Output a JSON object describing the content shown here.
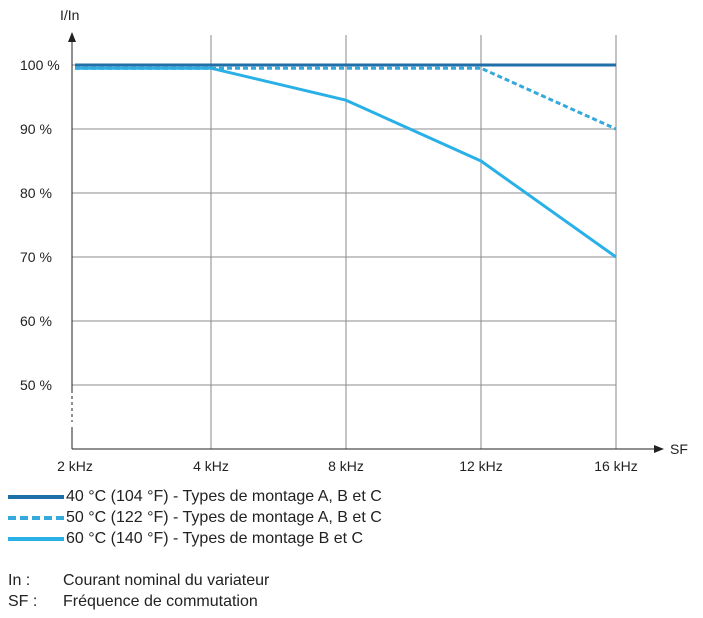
{
  "chart_data": {
    "type": "line",
    "ylabel": "I/In",
    "xlabel": "SF",
    "categories": [
      "2 kHz",
      "4 kHz",
      "8 kHz",
      "12 kHz",
      "16 kHz"
    ],
    "y_ticks": [
      "50 %",
      "60 %",
      "70 %",
      "80 %",
      "90 %",
      "100 %"
    ],
    "ylim": [
      40,
      105
    ],
    "grid": true,
    "series": [
      {
        "name": "40 °C (104 °F) - Types de montage A, B et C",
        "values": [
          100,
          100,
          100,
          100,
          100
        ],
        "color": "#1f6fa8",
        "dash": "solid"
      },
      {
        "name": "50 °C (122 °F) - Types de montage A, B et C",
        "values": [
          99.5,
          99.5,
          99.5,
          99.5,
          90
        ],
        "color": "#35a8dc",
        "dash": "dashed"
      },
      {
        "name": "60 °C (140 °F) - Types de montage B et C",
        "values": [
          99.5,
          99.5,
          94.5,
          85,
          70
        ],
        "color": "#29b0e6",
        "dash": "solid"
      }
    ]
  },
  "notes": [
    {
      "key": "In :",
      "text": "Courant nominal du variateur"
    },
    {
      "key": "SF :",
      "text": "Fréquence de commutation"
    }
  ]
}
